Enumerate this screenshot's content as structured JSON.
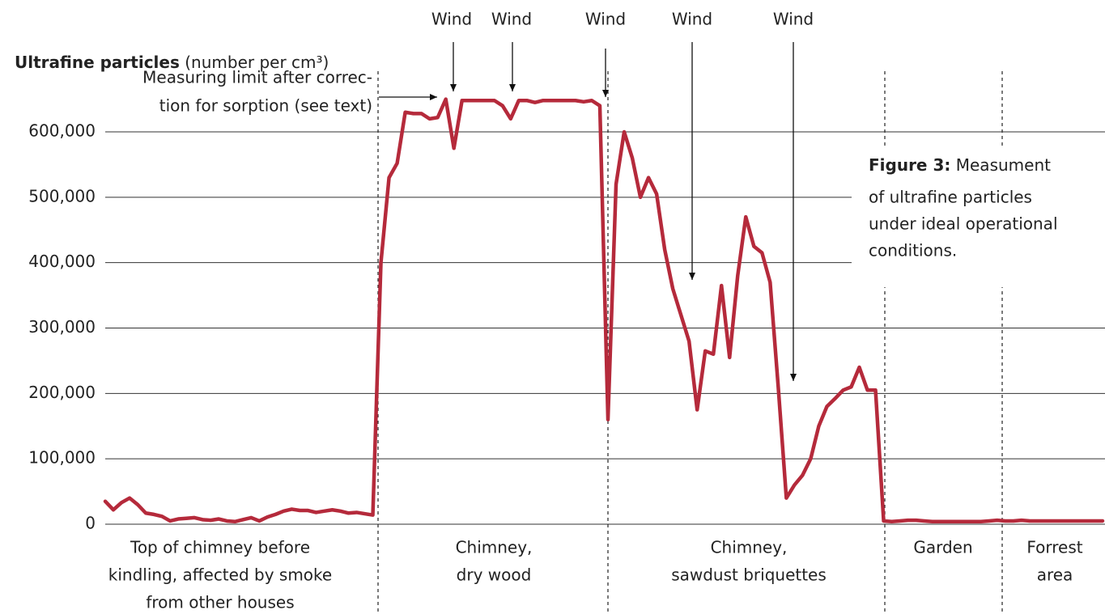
{
  "chart_data": {
    "type": "line",
    "title": "Ultrafine particles",
    "subtitle": "(number per cm³)",
    "color": "#b52a3b",
    "ylim": [
      0,
      650000
    ],
    "yticks": [
      0,
      {
        "value": 100000,
        "label": "100,000"
      },
      {
        "value": 200000,
        "label": "200,000"
      },
      {
        "value": 300000,
        "label": "300,000"
      },
      {
        "value": 400000,
        "label": "400,000"
      },
      {
        "value": 500000,
        "label": "500,000"
      },
      {
        "value": 600000,
        "label": "600,000"
      }
    ],
    "grid": true,
    "values": [
      35000,
      22000,
      33000,
      40000,
      30000,
      17000,
      15000,
      12000,
      5000,
      8000,
      9000,
      10000,
      7000,
      6000,
      8000,
      5000,
      4000,
      7000,
      10000,
      5000,
      11000,
      15000,
      20000,
      23000,
      21000,
      21000,
      18000,
      20000,
      22000,
      20000,
      17000,
      18000,
      16000,
      14000,
      400000,
      530000,
      552000,
      630000,
      628000,
      628000,
      620000,
      622000,
      650000,
      575000,
      648000,
      648000,
      648000,
      648000,
      648000,
      640000,
      620000,
      648000,
      648000,
      645000,
      648000,
      648000,
      648000,
      648000,
      648000,
      646000,
      648000,
      640000,
      160000,
      520000,
      600000,
      560000,
      500000,
      530000,
      505000,
      420000,
      360000,
      320000,
      280000,
      175000,
      265000,
      260000,
      365000,
      255000,
      380000,
      470000,
      425000,
      415000,
      370000,
      210000,
      40000,
      60000,
      75000,
      100000,
      150000,
      180000,
      192000,
      205000,
      210000,
      240000,
      205000,
      205000,
      5000,
      4000,
      5000,
      6000,
      6000,
      5000,
      4000,
      4000,
      4000,
      4000,
      4000,
      4000,
      4000,
      5000,
      6000,
      5000,
      5000,
      6000,
      5000,
      5000,
      5000,
      5000,
      5000,
      5000,
      5000,
      5000,
      5000,
      5000
    ],
    "limit_note": [
      "Measuring limit after correc-",
      "tion for sorption (see text)"
    ],
    "wind_labels": [
      "Wind",
      "Wind",
      "Wind",
      "Wind",
      "Wind"
    ],
    "segments": [
      [
        "Top of chimney before",
        "kindling, affected by smoke",
        "from other houses"
      ],
      [
        "Chimney,",
        "dry wood"
      ],
      [
        "Chimney,",
        "sawdust briquettes"
      ],
      [
        "Garden"
      ],
      [
        "Forrest",
        "area"
      ]
    ],
    "caption": {
      "label": "Figure 3:",
      "lines": [
        "Measument",
        "of ultrafine particles",
        "under ideal operational",
        "conditions."
      ]
    }
  }
}
